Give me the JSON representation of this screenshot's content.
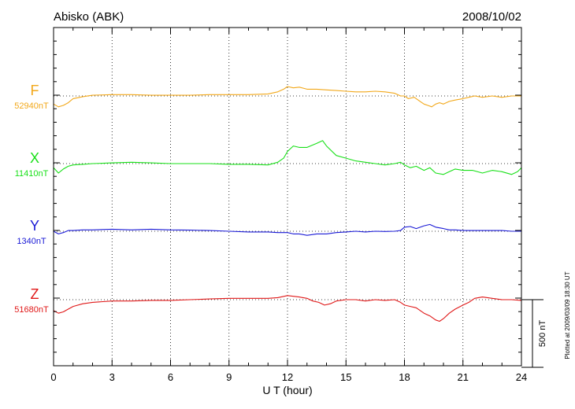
{
  "header": {
    "station": "Abisko (ABK)",
    "date": "2008/10/02"
  },
  "footer": {
    "plotted_note": "Plotted at 2009/03/09 18:30 UT"
  },
  "colors": {
    "F": "#f2a81a",
    "X": "#18e018",
    "Y": "#1a1ad6",
    "Z": "#e01818",
    "frame": "#000000",
    "grid": "#000000"
  },
  "chart_data": {
    "type": "line",
    "xlabel": "U T (hour)",
    "xlim": [
      0,
      24
    ],
    "x_ticks": [
      0,
      3,
      6,
      9,
      12,
      15,
      18,
      21,
      24
    ],
    "x_tick_labels": [
      "0",
      "3",
      "6",
      "9",
      "12",
      "15",
      "18",
      "21",
      "24"
    ],
    "grid": true,
    "scale_bar": {
      "value": 500,
      "label": "500 nT"
    },
    "series": [
      {
        "name": "F",
        "baseline_label": "52940nT",
        "baseline": 52940,
        "x": [
          0,
          0.25,
          0.5,
          0.75,
          1,
          1.5,
          2,
          3,
          4,
          5,
          6,
          7,
          8,
          9,
          10,
          11,
          11.5,
          11.8,
          12,
          12.3,
          12.6,
          13,
          13.5,
          14,
          14.5,
          15,
          15.5,
          16,
          16.5,
          17,
          17.5,
          17.8,
          18,
          18.2,
          18.5,
          18.8,
          19,
          19.2,
          19.4,
          19.6,
          19.8,
          20,
          20.3,
          20.6,
          21,
          21.3,
          21.6,
          22,
          22.5,
          23,
          23.5,
          24
        ],
        "y": [
          52880,
          52860,
          52870,
          52890,
          52920,
          52935,
          52945,
          52950,
          52950,
          52945,
          52945,
          52945,
          52950,
          52950,
          52950,
          52955,
          52970,
          52990,
          53010,
          53000,
          53005,
          52990,
          52990,
          52985,
          52980,
          52975,
          52970,
          52970,
          52975,
          52970,
          52960,
          52940,
          52940,
          52920,
          52930,
          52900,
          52880,
          52870,
          52860,
          52880,
          52890,
          52880,
          52900,
          52910,
          52920,
          52930,
          52940,
          52930,
          52940,
          52930,
          52940,
          52940
        ]
      },
      {
        "name": "X",
        "baseline_label": "11410nT",
        "baseline": 11410,
        "x": [
          0,
          0.25,
          0.5,
          0.75,
          1,
          1.5,
          2,
          3,
          4,
          5,
          6,
          7,
          8,
          9,
          10,
          11,
          11.5,
          11.8,
          12,
          12.3,
          12.6,
          13,
          13.5,
          13.8,
          14,
          14.5,
          15,
          15.5,
          16,
          16.5,
          17,
          17.5,
          17.8,
          18,
          18.3,
          18.6,
          19,
          19.3,
          19.6,
          20,
          20.3,
          20.6,
          21,
          21.5,
          22,
          22.5,
          23,
          23.5,
          23.8,
          24
        ],
        "y": [
          11380,
          11340,
          11370,
          11390,
          11400,
          11405,
          11410,
          11415,
          11420,
          11415,
          11410,
          11410,
          11410,
          11405,
          11405,
          11400,
          11420,
          11450,
          11500,
          11540,
          11530,
          11530,
          11560,
          11580,
          11540,
          11470,
          11450,
          11430,
          11420,
          11410,
          11400,
          11410,
          11420,
          11400,
          11380,
          11390,
          11360,
          11380,
          11340,
          11330,
          11350,
          11370,
          11360,
          11360,
          11340,
          11360,
          11350,
          11330,
          11350,
          11380
        ]
      },
      {
        "name": "Y",
        "baseline_label": "1340nT",
        "baseline": 1340,
        "x": [
          0,
          0.25,
          0.5,
          0.75,
          1,
          1.5,
          2,
          3,
          4,
          5,
          6,
          7,
          8,
          9,
          10,
          11,
          11.5,
          12,
          12.3,
          12.6,
          13,
          13.5,
          14,
          14.5,
          15,
          15.5,
          16,
          16.5,
          17,
          17.5,
          17.8,
          18,
          18.3,
          18.6,
          19,
          19.3,
          19.6,
          20,
          20.3,
          20.6,
          21,
          21.5,
          22,
          22.5,
          23,
          23.5,
          24
        ],
        "y": [
          1340,
          1320,
          1330,
          1345,
          1345,
          1350,
          1350,
          1355,
          1350,
          1355,
          1350,
          1348,
          1345,
          1340,
          1335,
          1335,
          1330,
          1330,
          1320,
          1320,
          1310,
          1320,
          1320,
          1330,
          1335,
          1340,
          1335,
          1340,
          1338,
          1340,
          1345,
          1370,
          1375,
          1360,
          1380,
          1390,
          1370,
          1360,
          1350,
          1350,
          1345,
          1345,
          1345,
          1345,
          1345,
          1340,
          1340
        ]
      },
      {
        "name": "Z",
        "baseline_label": "51680nT",
        "baseline": 51680,
        "x": [
          0,
          0.25,
          0.5,
          0.75,
          1,
          1.5,
          2,
          3,
          4,
          5,
          6,
          7,
          8,
          9,
          10,
          11,
          11.5,
          12,
          12.3,
          12.6,
          13,
          13.3,
          13.6,
          13.9,
          14.2,
          14.5,
          15,
          15.5,
          16,
          16.5,
          17,
          17.5,
          17.8,
          18,
          18.3,
          18.6,
          19,
          19.3,
          19.6,
          19.8,
          20,
          20.3,
          20.6,
          21,
          21.3,
          21.6,
          22,
          22.5,
          23,
          23.5,
          24
        ],
        "y": [
          51600,
          51580,
          51590,
          51610,
          51630,
          51650,
          51660,
          51670,
          51670,
          51675,
          51675,
          51680,
          51685,
          51690,
          51690,
          51690,
          51695,
          51710,
          51705,
          51700,
          51690,
          51670,
          51660,
          51640,
          51650,
          51670,
          51680,
          51680,
          51670,
          51680,
          51675,
          51680,
          51660,
          51640,
          51630,
          51620,
          51580,
          51560,
          51530,
          51520,
          51540,
          51580,
          51610,
          51640,
          51660,
          51690,
          51700,
          51690,
          51680,
          51680,
          51675
        ]
      }
    ]
  }
}
